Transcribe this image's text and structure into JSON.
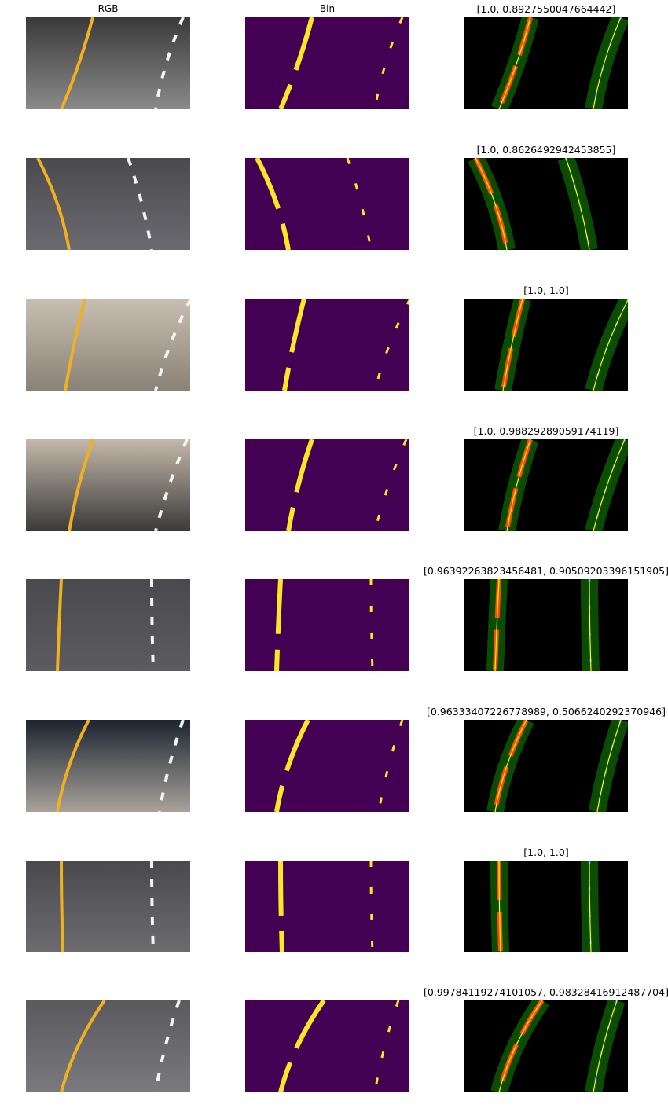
{
  "columns": {
    "rgb": "RGB",
    "bin": "Bin"
  },
  "rows": [
    {
      "confidence": "[1.0, 0.8927550047664442]"
    },
    {
      "confidence": "[1.0, 0.8626492942453855]"
    },
    {
      "confidence": "[1.0, 1.0]"
    },
    {
      "confidence": "[1.0, 0.98829289059174119]"
    },
    {
      "confidence": "[0.96392263823456481, 0.90509203396151905]"
    },
    {
      "confidence": "[0.96333407226778989, 0.5066240292370946]"
    },
    {
      "confidence": "[1.0, 1.0]"
    },
    {
      "confidence": "[0.99784119274101057, 0.98328416912487704]"
    }
  ],
  "colors": {
    "bin_background": "#440154",
    "bin_foreground": "#fde725",
    "fit_band": "#0a4d00",
    "fit_line": "#ffff00",
    "left_pixels": "#ff4a00",
    "right_pixels": "#1060ff"
  }
}
